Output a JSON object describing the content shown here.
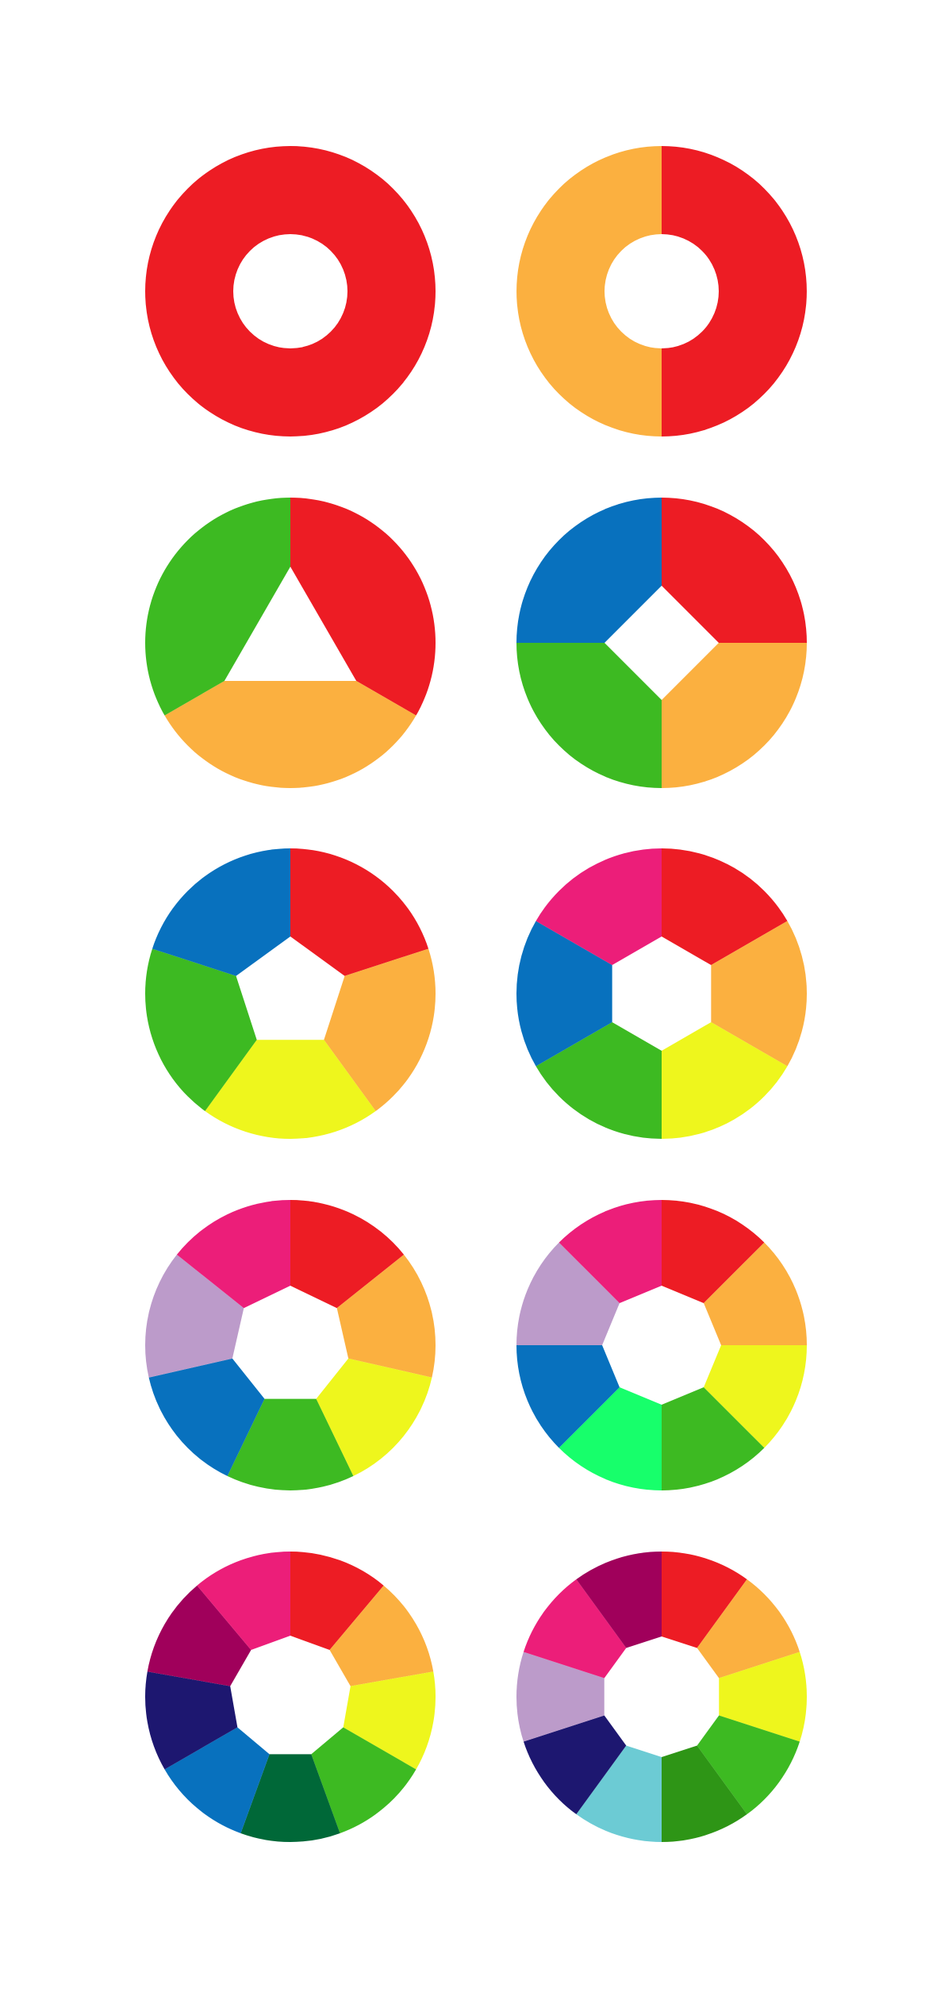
{
  "colors": {
    "red": "#ED1C24",
    "orange": "#FBB040",
    "green": "#3DBA22",
    "blue": "#0871BE",
    "yellow": "#EEF61D",
    "pink": "#EC1E79",
    "lavender": "#BC9BCA",
    "bright_green": "#17FF6B",
    "plum": "#A0005B",
    "navy": "#1D1770",
    "dark_green": "#006838",
    "teal": "#6CCBD4",
    "forest_green": "#2E9516",
    "background": "#FFFFFF"
  },
  "wheels": [
    {
      "segments": 1,
      "colors": [
        "red"
      ]
    },
    {
      "segments": 2,
      "colors": [
        "red",
        "orange"
      ]
    },
    {
      "segments": 3,
      "colors": [
        "red",
        "orange",
        "green"
      ]
    },
    {
      "segments": 4,
      "colors": [
        "red",
        "orange",
        "green",
        "blue"
      ]
    },
    {
      "segments": 5,
      "colors": [
        "red",
        "orange",
        "yellow",
        "green",
        "blue"
      ]
    },
    {
      "segments": 6,
      "colors": [
        "red",
        "orange",
        "yellow",
        "green",
        "blue",
        "pink"
      ]
    },
    {
      "segments": 7,
      "colors": [
        "red",
        "orange",
        "yellow",
        "green",
        "blue",
        "lavender",
        "pink"
      ]
    },
    {
      "segments": 8,
      "colors": [
        "red",
        "orange",
        "yellow",
        "green",
        "bright_green",
        "blue",
        "lavender",
        "pink"
      ]
    },
    {
      "segments": 9,
      "colors": [
        "red",
        "orange",
        "yellow",
        "green",
        "dark_green",
        "blue",
        "navy",
        "plum",
        "pink"
      ]
    },
    {
      "segments": 10,
      "colors": [
        "red",
        "orange",
        "yellow",
        "green",
        "forest_green",
        "teal",
        "navy",
        "lavender",
        "pink",
        "plum"
      ]
    }
  ]
}
